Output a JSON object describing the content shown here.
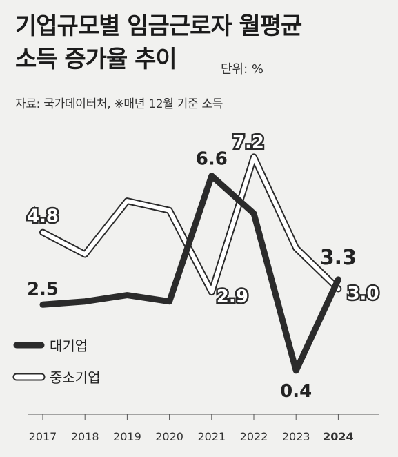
{
  "header": {
    "title_line1": "기업규모별 임금근로자 월평균",
    "title_line2": "소득 증가율 추이",
    "unit": "단위: %",
    "source": "자료: 국가데이터처, ※매년 12월 기준 소득"
  },
  "legend": {
    "large": "대기업",
    "sme": "중소기업"
  },
  "colors": {
    "large": "#2b2b2b",
    "sme": "#ffffff",
    "background": "#f1f1ef"
  },
  "chart_data": {
    "type": "line",
    "title": "기업규모별 임금근로자 월평균 소득 증가율 추이",
    "unit": "%",
    "x": [
      "2017",
      "2018",
      "2019",
      "2020",
      "2021",
      "2022",
      "2023",
      "2024"
    ],
    "series": [
      {
        "name": "대기업",
        "values": [
          2.5,
          2.6,
          2.8,
          2.6,
          6.6,
          5.4,
          0.4,
          3.3
        ],
        "labels": [
          "2.5",
          null,
          null,
          null,
          "6.6",
          null,
          "0.4",
          "3.3"
        ]
      },
      {
        "name": "중소기업",
        "values": [
          4.8,
          4.1,
          5.8,
          5.5,
          2.9,
          7.2,
          4.3,
          3.0
        ],
        "labels": [
          "4.8",
          null,
          null,
          null,
          "2.9",
          "7.2",
          null,
          "3.0"
        ]
      }
    ],
    "emphasized_tick": "2024",
    "grid": false,
    "legend_position": "bottom-left"
  }
}
